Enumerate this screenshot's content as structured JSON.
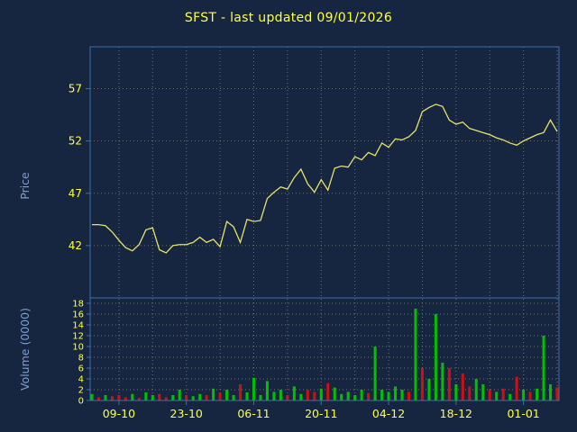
{
  "title": "SFST - last updated 09/01/2026",
  "colors": {
    "background": "#172640",
    "title": "#ffff44",
    "tick_label": "#ffff44",
    "axis_title": "#7aa0d4",
    "frame": "#3c6ea8",
    "grid": "#8a8a8a"
  },
  "chart_data": [
    {
      "type": "line",
      "name": "price",
      "title": "SFST - last updated 09/01/2026",
      "ylabel": "Price",
      "yticks": [
        42,
        47,
        52,
        57
      ],
      "ylim": [
        37,
        61
      ],
      "x_tick_labels": [
        "09-10",
        "23-10",
        "06-11",
        "20-11",
        "04-12",
        "18-12",
        "01-01"
      ],
      "x_tick_indices": [
        4,
        14,
        24,
        34,
        44,
        54,
        64
      ],
      "grid_x_start": 4,
      "grid_x_step": 5,
      "line_color": "#e6e26b",
      "values": [
        44.0,
        44.0,
        43.9,
        43.3,
        42.5,
        41.8,
        41.5,
        42.1,
        43.5,
        43.7,
        41.6,
        41.3,
        42.0,
        42.1,
        42.1,
        42.3,
        42.8,
        42.3,
        42.6,
        41.9,
        44.3,
        43.8,
        42.3,
        44.5,
        44.3,
        44.4,
        46.5,
        47.1,
        47.6,
        47.4,
        48.5,
        49.3,
        47.9,
        47.1,
        48.3,
        47.3,
        49.4,
        49.6,
        49.5,
        50.5,
        50.2,
        50.9,
        50.6,
        51.8,
        51.4,
        52.2,
        52.1,
        52.4,
        53.0,
        54.8,
        55.2,
        55.5,
        55.3,
        54.0,
        53.6,
        53.8,
        53.2,
        53.0,
        52.8,
        52.6,
        52.3,
        52.1,
        51.8,
        51.6,
        52.0,
        52.3,
        52.6,
        52.8,
        54.0,
        52.9
      ]
    },
    {
      "type": "bar",
      "name": "volume",
      "ylabel": "Volume (0000)",
      "yticks": [
        0,
        2,
        4,
        6,
        8,
        10,
        12,
        14,
        16,
        18
      ],
      "ylim": [
        0,
        18
      ],
      "up_color": "#00c000",
      "down_color": "#d01010",
      "values": [
        1.2,
        0.6,
        1.0,
        0.8,
        1.0,
        0.6,
        1.2,
        0.5,
        1.5,
        1.0,
        1.2,
        0.6,
        1.0,
        2.0,
        1.0,
        0.8,
        1.2,
        1.0,
        2.2,
        1.4,
        2.0,
        1.0,
        3.0,
        1.5,
        4.2,
        1.0,
        3.6,
        1.6,
        2.0,
        1.0,
        2.6,
        1.2,
        2.0,
        1.6,
        2.2,
        3.2,
        2.4,
        1.2,
        1.6,
        1.0,
        2.0,
        1.4,
        10.0,
        2.0,
        1.6,
        2.6,
        2.0,
        1.6,
        17.0,
        6.0,
        4.0,
        16.0,
        7.0,
        6.0,
        3.0,
        5.0,
        2.6,
        4.0,
        3.0,
        2.0,
        1.6,
        2.2,
        1.2,
        4.4,
        2.0,
        1.6,
        2.2,
        12.0,
        3.0,
        2.4
      ],
      "bar_colors": [
        "u",
        "d",
        "u",
        "d",
        "d",
        "d",
        "u",
        "d",
        "u",
        "u",
        "d",
        "d",
        "u",
        "u",
        "d",
        "u",
        "u",
        "d",
        "u",
        "d",
        "u",
        "u",
        "d",
        "u",
        "u",
        "u",
        "u",
        "u",
        "u",
        "d",
        "u",
        "u",
        "d",
        "d",
        "u",
        "d",
        "u",
        "u",
        "u",
        "u",
        "u",
        "d",
        "u",
        "u",
        "u",
        "u",
        "u",
        "d",
        "u",
        "d",
        "u",
        "u",
        "u",
        "d",
        "u",
        "d",
        "d",
        "u",
        "u",
        "d",
        "u",
        "d",
        "u",
        "d",
        "u",
        "d",
        "u",
        "u",
        "u",
        "d"
      ]
    }
  ]
}
